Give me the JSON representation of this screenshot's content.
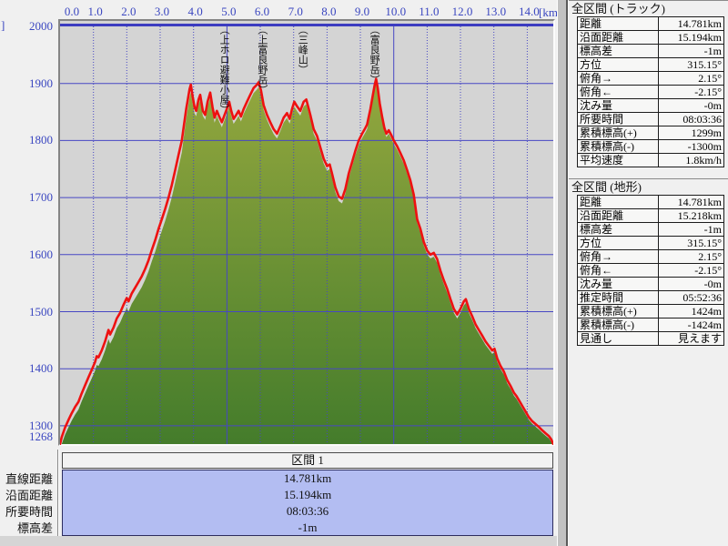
{
  "axes": {
    "y_unit_remnant": "]",
    "x_unit": "[km]",
    "x_ticks": [
      {
        "label": "0.0",
        "km": 0
      },
      {
        "label": "1.0",
        "km": 1
      },
      {
        "label": "2.0",
        "km": 2
      },
      {
        "label": "3.0",
        "km": 3
      },
      {
        "label": "4.0",
        "km": 4
      },
      {
        "label": "5.0",
        "km": 5
      },
      {
        "label": "6.0",
        "km": 6
      },
      {
        "label": "7.0",
        "km": 7
      },
      {
        "label": "8.0",
        "km": 8
      },
      {
        "label": "9.0",
        "km": 9
      },
      {
        "label": "10.0",
        "km": 10
      },
      {
        "label": "11.0",
        "km": 11
      },
      {
        "label": "12.0",
        "km": 12
      },
      {
        "label": "13.0",
        "km": 13
      },
      {
        "label": "14.0",
        "km": 14
      }
    ],
    "y_ticks": [
      {
        "label": "2000",
        "m": 2000
      },
      {
        "label": "1900",
        "m": 1900
      },
      {
        "label": "1800",
        "m": 1800
      },
      {
        "label": "1700",
        "m": 1700
      },
      {
        "label": "1600",
        "m": 1600
      },
      {
        "label": "1500",
        "m": 1500
      },
      {
        "label": "1400",
        "m": 1400
      },
      {
        "label": "1300",
        "m": 1300
      },
      {
        "label": "1268",
        "m": 1268
      }
    ]
  },
  "peaks": [
    {
      "label": "（上ホロ避難小屋）",
      "km": 4.83
    },
    {
      "label": "（上富良野岳）",
      "km": 5.97
    },
    {
      "label": "（三峰山）",
      "km": 7.18
    },
    {
      "label": "（富良野岳）",
      "km": 9.33
    }
  ],
  "chart_data": {
    "type": "area",
    "title": "",
    "xlabel": "[km]",
    "ylabel": "[m]",
    "x_range": [
      0,
      14.781
    ],
    "y_range": [
      1268,
      2000
    ],
    "grid": {
      "h_interval_m": 100,
      "v_interval_km": 1,
      "v_solid_every_km": 5
    },
    "colors": {
      "track_line": "#ee1111",
      "terrain_fill_top": "#93a73e",
      "terrain_fill_bottom": "#447c2b",
      "grid_blue": "#4747c4",
      "axis_text_blue": "#3a46c0",
      "plot_bg": "#d4d4d4",
      "value_box_bg": "#b3bdf2"
    },
    "series": [
      {
        "name": "track-elevation-red",
        "points": [
          [
            0.0,
            1268
          ],
          [
            0.05,
            1280
          ],
          [
            0.15,
            1297
          ],
          [
            0.25,
            1310
          ],
          [
            0.35,
            1322
          ],
          [
            0.45,
            1333
          ],
          [
            0.55,
            1342
          ],
          [
            0.65,
            1357
          ],
          [
            0.75,
            1371
          ],
          [
            0.85,
            1385
          ],
          [
            0.95,
            1398
          ],
          [
            1.05,
            1412
          ],
          [
            1.1,
            1422
          ],
          [
            1.15,
            1420
          ],
          [
            1.25,
            1432
          ],
          [
            1.35,
            1448
          ],
          [
            1.45,
            1468
          ],
          [
            1.5,
            1460
          ],
          [
            1.6,
            1472
          ],
          [
            1.7,
            1488
          ],
          [
            1.8,
            1498
          ],
          [
            1.9,
            1512
          ],
          [
            2.0,
            1524
          ],
          [
            2.05,
            1518
          ],
          [
            2.15,
            1532
          ],
          [
            2.25,
            1542
          ],
          [
            2.35,
            1552
          ],
          [
            2.45,
            1562
          ],
          [
            2.55,
            1575
          ],
          [
            2.65,
            1590
          ],
          [
            2.75,
            1608
          ],
          [
            2.85,
            1625
          ],
          [
            2.95,
            1645
          ],
          [
            3.05,
            1662
          ],
          [
            3.15,
            1680
          ],
          [
            3.25,
            1700
          ],
          [
            3.35,
            1722
          ],
          [
            3.45,
            1748
          ],
          [
            3.55,
            1775
          ],
          [
            3.65,
            1800
          ],
          [
            3.72,
            1830
          ],
          [
            3.78,
            1855
          ],
          [
            3.83,
            1872
          ],
          [
            3.88,
            1890
          ],
          [
            3.92,
            1898
          ],
          [
            3.97,
            1878
          ],
          [
            4.03,
            1858
          ],
          [
            4.08,
            1852
          ],
          [
            4.15,
            1872
          ],
          [
            4.2,
            1880
          ],
          [
            4.28,
            1852
          ],
          [
            4.35,
            1845
          ],
          [
            4.42,
            1868
          ],
          [
            4.5,
            1884
          ],
          [
            4.57,
            1858
          ],
          [
            4.63,
            1840
          ],
          [
            4.7,
            1852
          ],
          [
            4.77,
            1842
          ],
          [
            4.85,
            1832
          ],
          [
            4.93,
            1845
          ],
          [
            5.0,
            1856
          ],
          [
            5.07,
            1868
          ],
          [
            5.13,
            1852
          ],
          [
            5.2,
            1838
          ],
          [
            5.28,
            1845
          ],
          [
            5.35,
            1852
          ],
          [
            5.42,
            1842
          ],
          [
            5.5,
            1855
          ],
          [
            5.6,
            1868
          ],
          [
            5.7,
            1880
          ],
          [
            5.8,
            1892
          ],
          [
            5.9,
            1898
          ],
          [
            5.95,
            1902
          ],
          [
            6.02,
            1888
          ],
          [
            6.1,
            1862
          ],
          [
            6.2,
            1845
          ],
          [
            6.3,
            1832
          ],
          [
            6.4,
            1820
          ],
          [
            6.5,
            1812
          ],
          [
            6.6,
            1825
          ],
          [
            6.7,
            1840
          ],
          [
            6.8,
            1848
          ],
          [
            6.88,
            1838
          ],
          [
            6.95,
            1855
          ],
          [
            7.02,
            1868
          ],
          [
            7.1,
            1860
          ],
          [
            7.2,
            1852
          ],
          [
            7.3,
            1868
          ],
          [
            7.38,
            1872
          ],
          [
            7.5,
            1845
          ],
          [
            7.6,
            1820
          ],
          [
            7.7,
            1808
          ],
          [
            7.8,
            1788
          ],
          [
            7.9,
            1768
          ],
          [
            8.0,
            1755
          ],
          [
            8.08,
            1758
          ],
          [
            8.15,
            1742
          ],
          [
            8.25,
            1718
          ],
          [
            8.35,
            1702
          ],
          [
            8.45,
            1698
          ],
          [
            8.55,
            1715
          ],
          [
            8.65,
            1742
          ],
          [
            8.75,
            1762
          ],
          [
            8.85,
            1782
          ],
          [
            8.95,
            1800
          ],
          [
            9.05,
            1812
          ],
          [
            9.15,
            1822
          ],
          [
            9.2,
            1828
          ],
          [
            9.3,
            1855
          ],
          [
            9.38,
            1882
          ],
          [
            9.43,
            1898
          ],
          [
            9.47,
            1908
          ],
          [
            9.52,
            1892
          ],
          [
            9.58,
            1865
          ],
          [
            9.65,
            1842
          ],
          [
            9.72,
            1822
          ],
          [
            9.78,
            1812
          ],
          [
            9.85,
            1818
          ],
          [
            9.92,
            1810
          ],
          [
            10.0,
            1800
          ],
          [
            10.1,
            1790
          ],
          [
            10.2,
            1778
          ],
          [
            10.3,
            1765
          ],
          [
            10.4,
            1748
          ],
          [
            10.5,
            1730
          ],
          [
            10.6,
            1705
          ],
          [
            10.7,
            1662
          ],
          [
            10.8,
            1645
          ],
          [
            10.9,
            1622
          ],
          [
            11.0,
            1607
          ],
          [
            11.1,
            1600
          ],
          [
            11.2,
            1603
          ],
          [
            11.3,
            1592
          ],
          [
            11.4,
            1572
          ],
          [
            11.5,
            1555
          ],
          [
            11.6,
            1540
          ],
          [
            11.7,
            1522
          ],
          [
            11.8,
            1505
          ],
          [
            11.9,
            1495
          ],
          [
            12.0,
            1505
          ],
          [
            12.1,
            1518
          ],
          [
            12.16,
            1522
          ],
          [
            12.25,
            1505
          ],
          [
            12.35,
            1492
          ],
          [
            12.45,
            1478
          ],
          [
            12.55,
            1468
          ],
          [
            12.65,
            1458
          ],
          [
            12.75,
            1448
          ],
          [
            12.85,
            1440
          ],
          [
            12.95,
            1432
          ],
          [
            13.02,
            1435
          ],
          [
            13.1,
            1418
          ],
          [
            13.2,
            1405
          ],
          [
            13.3,
            1395
          ],
          [
            13.4,
            1380
          ],
          [
            13.5,
            1370
          ],
          [
            13.6,
            1358
          ],
          [
            13.68,
            1352
          ],
          [
            13.75,
            1345
          ],
          [
            13.85,
            1335
          ],
          [
            13.95,
            1325
          ],
          [
            14.05,
            1315
          ],
          [
            14.15,
            1308
          ],
          [
            14.25,
            1303
          ],
          [
            14.35,
            1298
          ],
          [
            14.45,
            1292
          ],
          [
            14.55,
            1287
          ],
          [
            14.65,
            1282
          ],
          [
            14.72,
            1276
          ],
          [
            14.781,
            1268
          ]
        ]
      },
      {
        "name": "terrain-green-fill",
        "derived_from": "track-elevation-red",
        "gap_below_track_m": [
          [
            0,
            12
          ],
          [
            1.0,
            15
          ],
          [
            3.6,
            22
          ],
          [
            4.1,
            9
          ],
          [
            9.3,
            8
          ],
          [
            9.6,
            6
          ],
          [
            12.0,
            7
          ],
          [
            14.781,
            4
          ]
        ]
      }
    ]
  },
  "bottom": {
    "header": "区間 1",
    "rows": [
      {
        "label": "直線距離",
        "value": "14.781km"
      },
      {
        "label": "沿面距離",
        "value": "15.194km"
      },
      {
        "label": "所要時間",
        "value": "08:03:36"
      },
      {
        "label": "標高差",
        "value": "-1m"
      }
    ]
  },
  "right_panels": [
    {
      "title": "全区間 (トラック)",
      "rows": [
        {
          "label": "距離",
          "value": "14.781km"
        },
        {
          "label": "沿面距離",
          "value": "15.194km"
        },
        {
          "label": "標高差",
          "value": "-1m"
        },
        {
          "label": "方位",
          "value": "315.15°"
        },
        {
          "label": "俯角→",
          "value": "2.15°"
        },
        {
          "label": "俯角←",
          "value": "-2.15°"
        },
        {
          "label": "沈み量",
          "value": "-0m"
        },
        {
          "label": "所要時間",
          "value": "08:03:36"
        },
        {
          "label": "累積標高(+)",
          "value": "1299m"
        },
        {
          "label": "累積標高(-)",
          "value": "-1300m"
        },
        {
          "label": "平均速度",
          "value": "1.8km/h"
        }
      ]
    },
    {
      "title": "全区間 (地形)",
      "rows": [
        {
          "label": "距離",
          "value": "14.781km"
        },
        {
          "label": "沿面距離",
          "value": "15.218km"
        },
        {
          "label": "標高差",
          "value": "-1m"
        },
        {
          "label": "方位",
          "value": "315.15°"
        },
        {
          "label": "俯角→",
          "value": "2.15°"
        },
        {
          "label": "俯角←",
          "value": "-2.15°"
        },
        {
          "label": "沈み量",
          "value": "-0m"
        },
        {
          "label": "推定時間",
          "value": "05:52:36"
        },
        {
          "label": "累積標高(+)",
          "value": "1424m"
        },
        {
          "label": "累積標高(-)",
          "value": "-1424m"
        },
        {
          "label": "見通し",
          "value": "見えます"
        }
      ]
    }
  ]
}
